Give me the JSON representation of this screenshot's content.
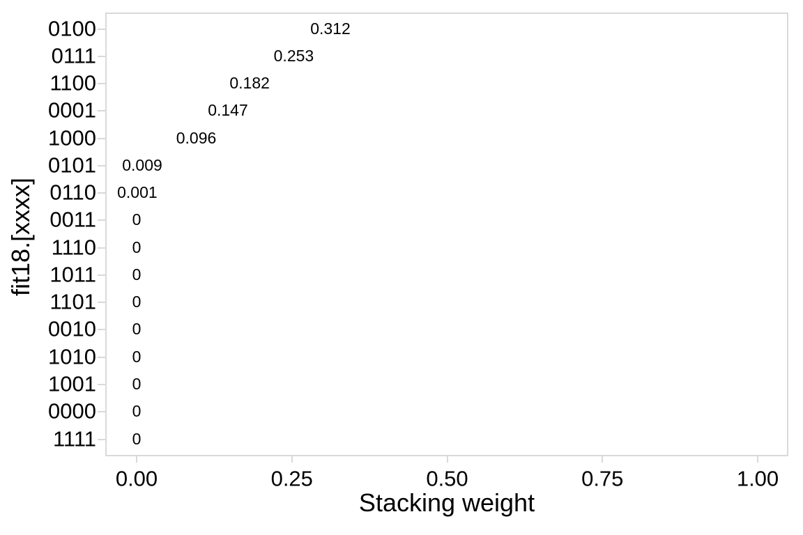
{
  "chart_data": {
    "type": "scatter",
    "subtype": "text-label-dotplot",
    "title": "",
    "xlabel": "Stacking weight",
    "ylabel": "fit18.[xxxx]",
    "xlim": [
      0,
      1
    ],
    "x_ticks": [
      {
        "value": 0.0,
        "label": "0.00"
      },
      {
        "value": 0.25,
        "label": "0.25"
      },
      {
        "value": 0.5,
        "label": "0.50"
      },
      {
        "value": 0.75,
        "label": "0.75"
      },
      {
        "value": 1.0,
        "label": "1.00"
      }
    ],
    "categories": [
      "0100",
      "0111",
      "1100",
      "0001",
      "1000",
      "0101",
      "0110",
      "0011",
      "1110",
      "1011",
      "1101",
      "0010",
      "1010",
      "1001",
      "0000",
      "1111"
    ],
    "values": [
      0.312,
      0.253,
      0.182,
      0.147,
      0.096,
      0.009,
      0.001,
      0,
      0,
      0,
      0,
      0,
      0,
      0,
      0,
      0
    ],
    "value_labels": [
      "0.312",
      "0.253",
      "0.182",
      "0.147",
      "0.096",
      "0.009",
      "0.001",
      "0",
      "0",
      "0",
      "0",
      "0",
      "0",
      "0",
      "0",
      "0"
    ],
    "grid": false,
    "legend_position": "none",
    "colors": {
      "panel_border": "#d9d9d9",
      "tick_mark": "#d9d9d9",
      "axis_text": "#000000",
      "value_label_text": "#000000",
      "background": "#ffffff"
    }
  }
}
